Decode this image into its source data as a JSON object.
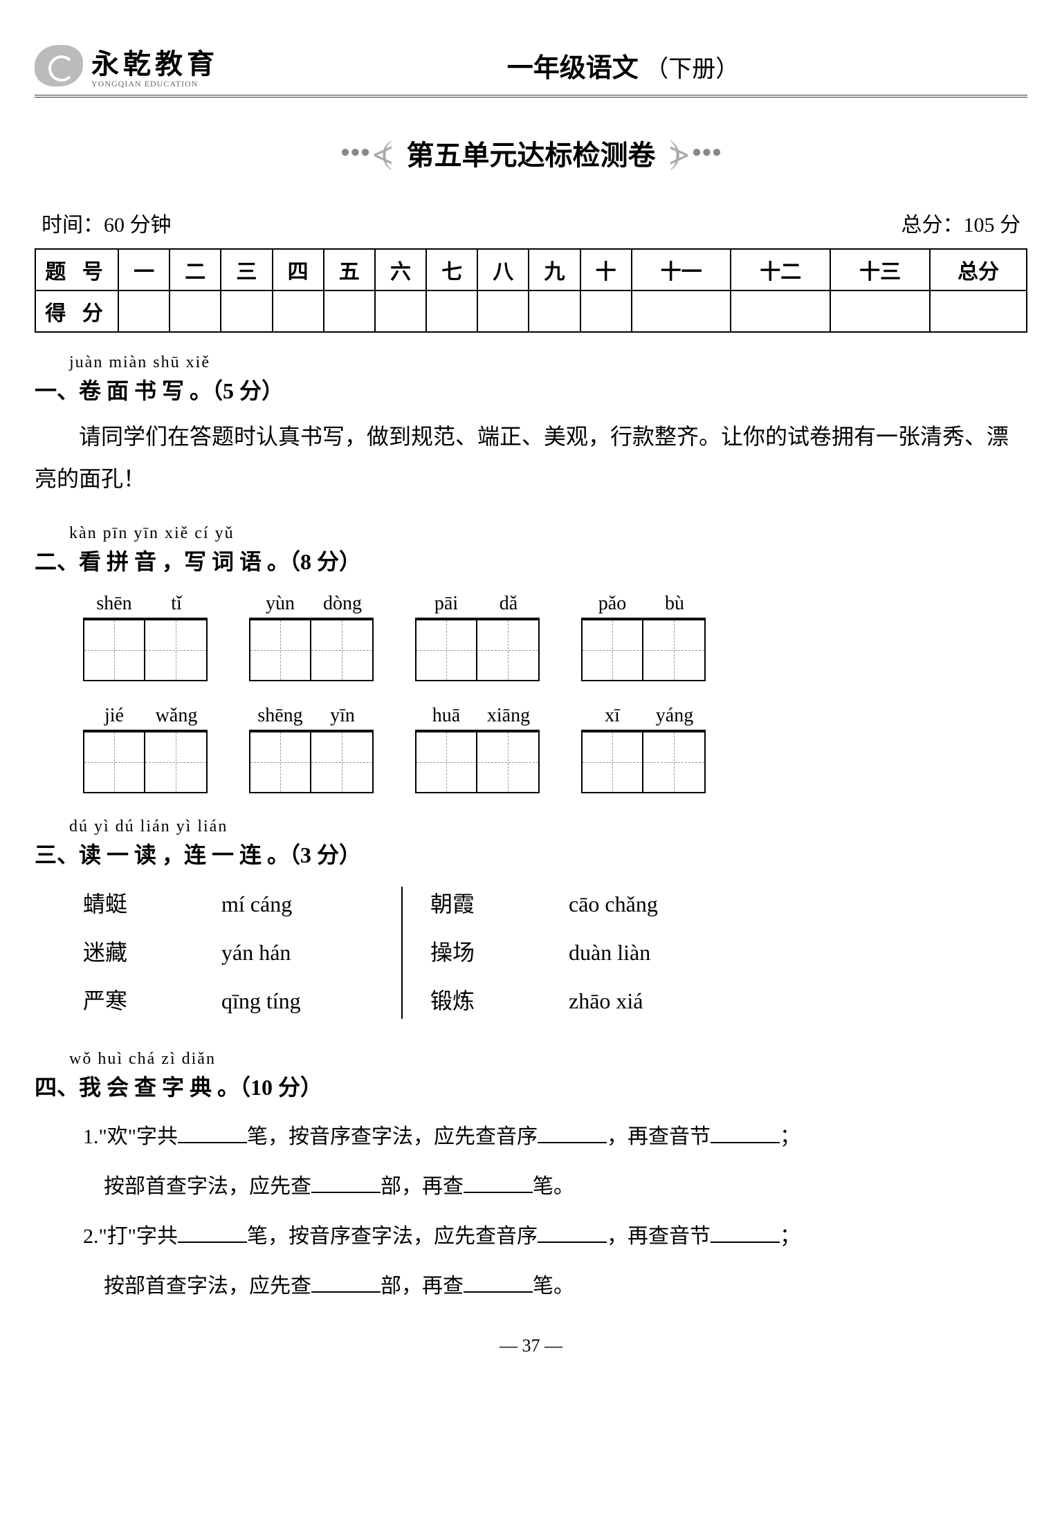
{
  "header": {
    "brand": "永乾教育",
    "brand_sub": "YONGQIAN EDUCATION",
    "book_title": "一年级语文",
    "book_sub": "（下册）"
  },
  "paper_title": "第五单元达标检测卷",
  "meta": {
    "time": "时间：60 分钟",
    "total": "总分：105 分"
  },
  "score_table": {
    "row1_label": "题 号",
    "row2_label": "得 分",
    "cols": [
      "一",
      "二",
      "三",
      "四",
      "五",
      "六",
      "七",
      "八",
      "九",
      "十",
      "十一",
      "十二",
      "十三",
      "总分"
    ]
  },
  "sections": {
    "s1": {
      "pinyin": "juàn miàn shū xiě",
      "heading": "一、卷  面  书  写 。（5 分）",
      "body": "请同学们在答题时认真书写，做到规范、端正、美观，行款整齐。让你的试卷拥有一张清秀、漂亮的面孔！"
    },
    "s2": {
      "pinyin": "kàn pīn yīn   xiě cí yǔ",
      "heading": "二、看 拼 音 ，写 词 语 。（8 分）",
      "row1": [
        [
          "shēn",
          "tǐ"
        ],
        [
          "yùn",
          "dòng"
        ],
        [
          "pāi",
          "dǎ"
        ],
        [
          "pǎo",
          "bù"
        ]
      ],
      "row2": [
        [
          "jié",
          "wǎng"
        ],
        [
          "shēng",
          "yīn"
        ],
        [
          "huā",
          "xiāng"
        ],
        [
          "xī",
          "yáng"
        ]
      ]
    },
    "s3": {
      "pinyin": "dú yì dú   lián yì lián",
      "heading": "三、读 一 读 ，连  一  连  。（3 分）",
      "left_words": [
        "蜻蜓",
        "迷藏",
        "严寒"
      ],
      "left_pinyins": [
        "mí cáng",
        "yán hán",
        "qīng tíng"
      ],
      "right_words": [
        "朝霞",
        "操场",
        "锻炼"
      ],
      "right_pinyins": [
        "cāo chǎng",
        "duàn liàn",
        "zhāo xiá"
      ]
    },
    "s4": {
      "pinyin": "wǒ huì chá zì diǎn",
      "heading": "四、我 会 查 字 典  。（10 分）",
      "q1a": "1.\"欢\"字共",
      "q1b": "笔，按音序查字法，应先查音序",
      "q1c": "，再查音节",
      "q1d": "；",
      "q1e": "按部首查字法，应先查",
      "q1f": "部，再查",
      "q1g": "笔。",
      "q2a": "2.\"打\"字共",
      "q2b": "笔，按音序查字法，应先查音序",
      "q2c": "，再查音节",
      "q2d": "；",
      "q2e": "按部首查字法，应先查",
      "q2f": "部，再查",
      "q2g": "笔。"
    }
  },
  "page_num": "—  37  —"
}
